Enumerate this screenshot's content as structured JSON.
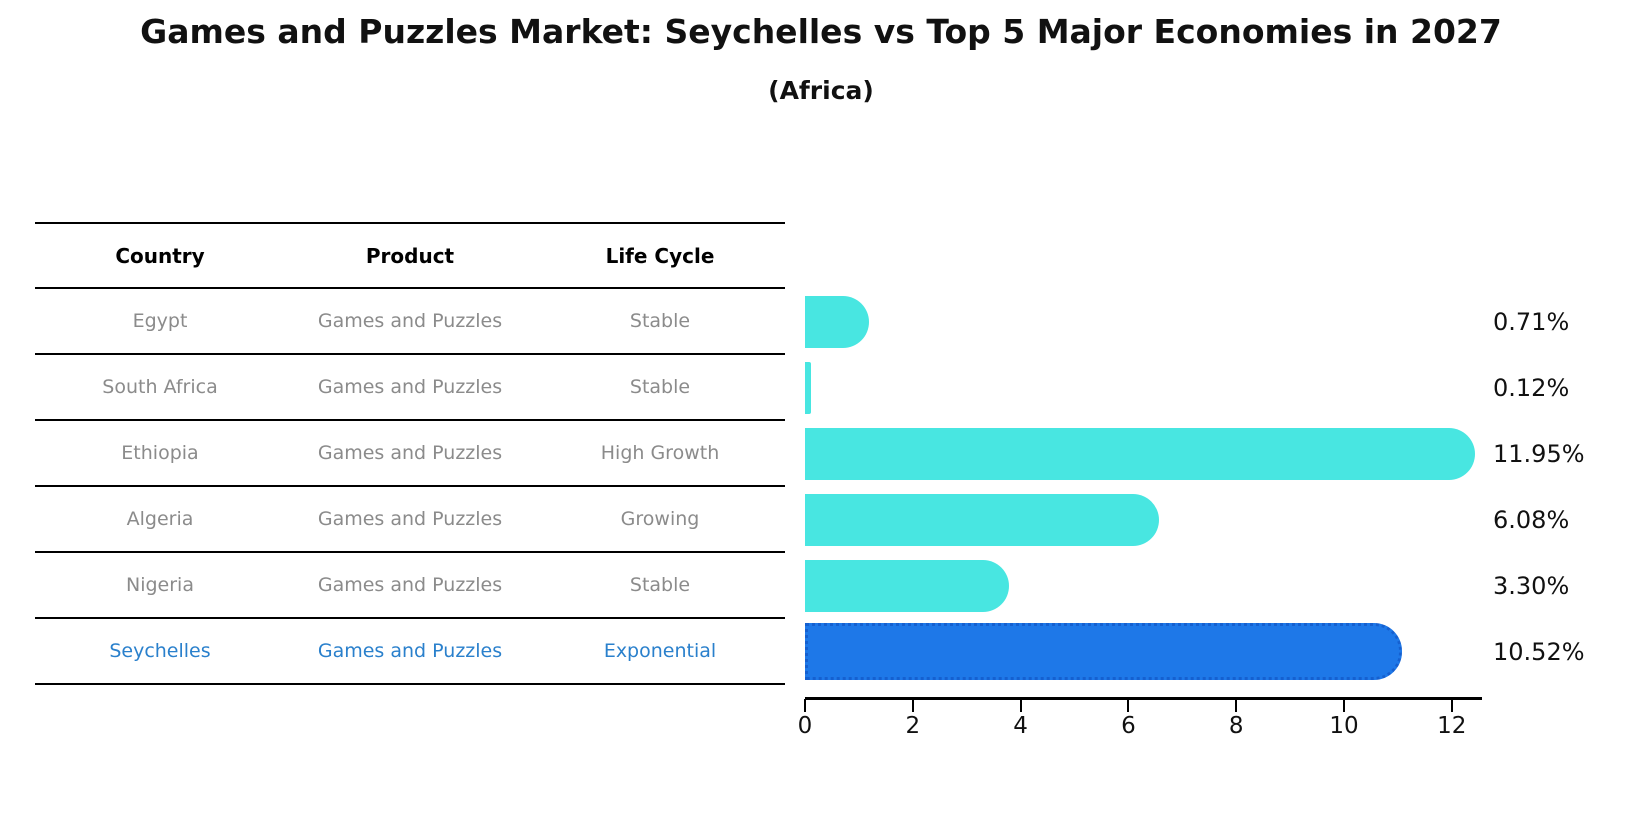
{
  "title": "Games and Puzzles Market: Seychelles vs Top 5 Major Economies in 2027",
  "subtitle": "(Africa)",
  "table": {
    "headers": [
      "Country",
      "Product",
      "Life Cycle"
    ]
  },
  "chart_data": {
    "type": "bar",
    "orientation": "horizontal",
    "title": "Games and Puzzles Market: Seychelles vs Top 5 Major Economies in 2027",
    "subtitle": "(Africa)",
    "categories": [
      "Egypt",
      "South Africa",
      "Ethiopia",
      "Algeria",
      "Nigeria",
      "Seychelles"
    ],
    "values": [
      0.71,
      0.12,
      11.95,
      6.08,
      3.3,
      10.52
    ],
    "rows": [
      {
        "country": "Egypt",
        "product": "Games and Puzzles",
        "life_cycle": "Stable",
        "value": 0.71,
        "label": "0.71%",
        "highlight": false
      },
      {
        "country": "South Africa",
        "product": "Games and Puzzles",
        "life_cycle": "Stable",
        "value": 0.12,
        "label": "0.12%",
        "highlight": false
      },
      {
        "country": "Ethiopia",
        "product": "Games and Puzzles",
        "life_cycle": "High Growth",
        "value": 11.95,
        "label": "11.95%",
        "highlight": false
      },
      {
        "country": "Algeria",
        "product": "Games and Puzzles",
        "life_cycle": "Growing",
        "value": 6.08,
        "label": "6.08%",
        "highlight": false
      },
      {
        "country": "Nigeria",
        "product": "Games and Puzzles",
        "life_cycle": "Stable",
        "value": 3.3,
        "label": "3.30%",
        "highlight": false
      },
      {
        "country": "Seychelles",
        "product": "Games and Puzzles",
        "life_cycle": "Exponential",
        "value": 10.52,
        "label": "10.52%",
        "highlight": true
      }
    ],
    "x_ticks": [
      0,
      2,
      4,
      6,
      8,
      10,
      12
    ],
    "xlim": [
      0,
      12.55
    ],
    "xlabel": "",
    "ylabel": "",
    "grid": false,
    "legend": false
  },
  "colors": {
    "bar": "#48E6E1",
    "highlight_bar": "#1E78E8",
    "highlight_border": "#1560D0",
    "highlight_text": "#2A80CC",
    "row_text": "#8B8B8B"
  }
}
